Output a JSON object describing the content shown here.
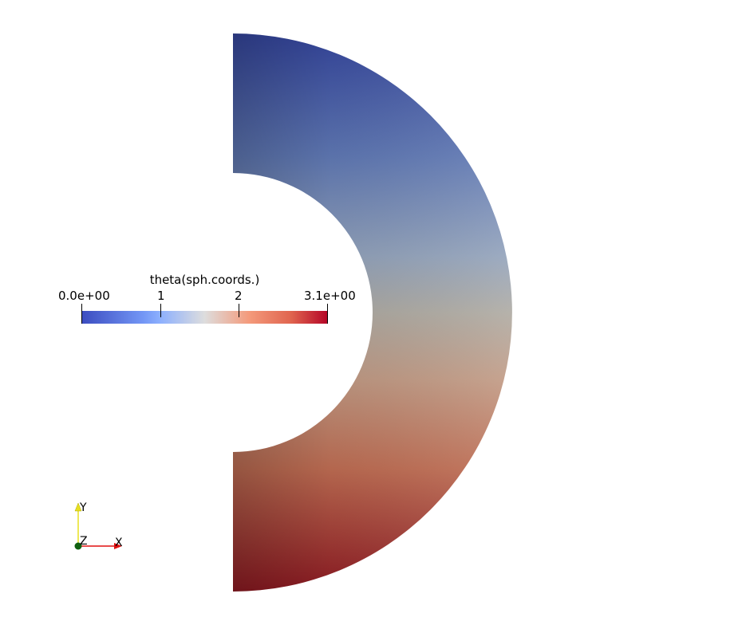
{
  "scalar_bar": {
    "title": "theta(sph.coords.)",
    "range": [
      0,
      3.14159
    ],
    "tick_labels": [
      "0.0e+00",
      "1",
      "2",
      "3.1e+00"
    ],
    "tick_values": [
      0,
      1,
      2,
      3.14159
    ],
    "colormap": "Cool to Warm",
    "colors": {
      "min": "#3b4cc0",
      "mid_low": "#8db0fe",
      "mid": "#dddddd",
      "mid_high": "#f49a7b",
      "max": "#b40426"
    }
  },
  "surface": {
    "shape": "half-annulus",
    "colored_by": "theta",
    "top_color": "#2f3d91",
    "middle_color": "#aeaaa2",
    "bottom_color": "#800418",
    "inner_edge_top_color": "#4d66ba",
    "inner_edge_bottom_color": "#b5533c"
  },
  "orientation_axes": {
    "x_label": "X",
    "y_label": "Y",
    "z_label": "Z",
    "x_color": "#e01010",
    "y_color": "#e8e020",
    "z_color": "#106010"
  }
}
